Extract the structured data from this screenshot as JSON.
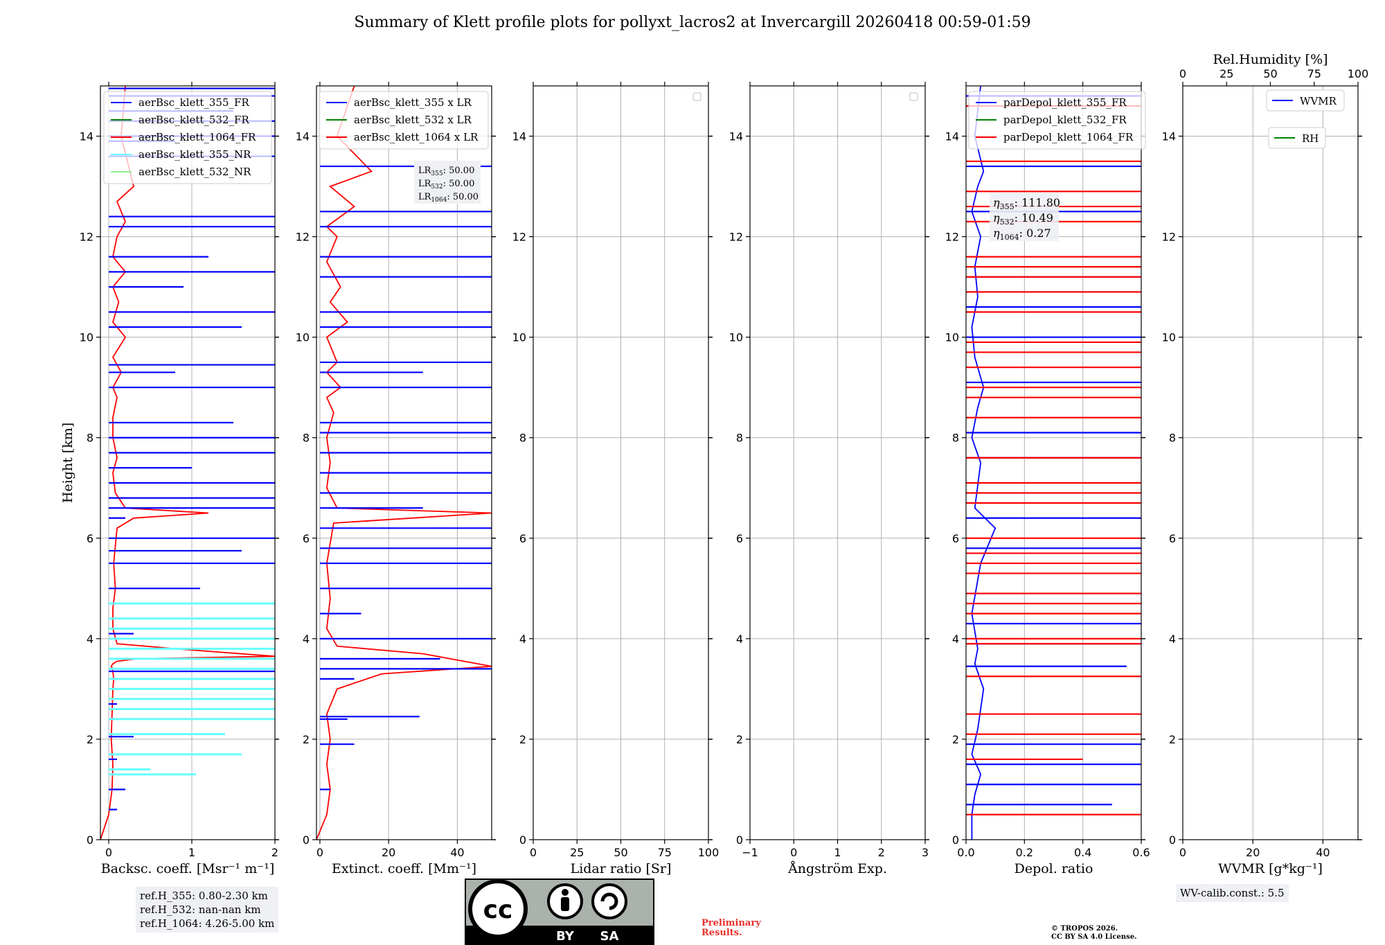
{
  "figure": {
    "title": "Summary of Klett profile plots for pollyxt_lacros2 at Invercargill 20260418 00:59-01:59",
    "ylabel": "Height [km]",
    "ref_heights": [
      "ref.H_355: 0.80-2.30 km",
      "ref.H_532: nan-nan km",
      "ref.H_1064: 4.26-5.00 km"
    ],
    "wv_calib": "WV-calib.const.: 5.5",
    "preliminary": [
      "Preliminary",
      "Results."
    ],
    "copyright": [
      "© TROPOS 2026.",
      "CC BY SA 4.0 License."
    ],
    "license_badge": {
      "by": "BY",
      "sa": "SA"
    }
  },
  "colors": {
    "blue": "#0000ff",
    "red": "#ff0000",
    "cyan": "#66ffff",
    "green": "#008000",
    "lightgreen": "#90ee90",
    "grid": "#b0b0b0"
  },
  "chart_data": [
    {
      "type": "line",
      "name": "backscatter",
      "xlabel": "Backsc. coeff. [Msr⁻¹ m⁻¹]",
      "xlim": [
        -0.1,
        2
      ],
      "xticks": [
        0,
        1,
        2
      ],
      "ylim": [
        0,
        15
      ],
      "yticks": [
        0,
        2,
        4,
        6,
        8,
        10,
        12,
        14
      ],
      "legend": [
        "aerBsc_klett_355_FR",
        "aerBsc_klett_532_FR",
        "aerBsc_klett_1064_FR",
        "aerBsc_klett_355_NR",
        "aerBsc_klett_532_NR"
      ],
      "legend_colors": [
        "#0000ff",
        "#008000",
        "#ff0000",
        "#66ffff",
        "#90ee90"
      ],
      "series": [
        {
          "name": "aerBsc_klett_1064_FR",
          "color": "#ff0000",
          "x": [
            -0.1,
            0.0,
            0.04,
            0.05,
            0.03,
            0.04,
            0.05,
            0.06,
            0.05,
            0.04,
            0.03,
            0.05,
            0.1,
            0.35,
            1.0,
            2.0,
            0.8,
            0.1,
            0.05,
            0.05,
            0.08,
            0.06,
            0.1,
            0.3,
            1.2,
            0.2,
            0.08,
            0.05,
            0.1,
            0.05,
            0.05,
            0.1,
            0.05,
            0.15,
            0.05,
            0.2,
            0.05,
            0.12,
            0.05,
            0.2,
            0.05,
            0.1,
            0.2,
            0.1,
            0.3,
            0.15,
            0.2
          ],
          "y": [
            0.0,
            0.5,
            1.0,
            1.5,
            2.0,
            2.5,
            3.0,
            3.2,
            3.35,
            3.42,
            3.45,
            3.5,
            3.55,
            3.6,
            3.62,
            3.65,
            3.8,
            3.9,
            4.2,
            4.6,
            5.0,
            5.5,
            6.2,
            6.4,
            6.5,
            6.6,
            6.9,
            7.3,
            7.6,
            8.0,
            8.4,
            8.8,
            9.0,
            9.3,
            9.6,
            10.0,
            10.3,
            10.7,
            11.0,
            11.3,
            11.6,
            12.0,
            12.3,
            12.7,
            13.0,
            14.0,
            15.0
          ]
        },
        {
          "name": "aerBsc_klett_355_FR",
          "color": "#0000ff",
          "style": "spikes",
          "x": [
            0.1,
            0.2,
            0.1,
            0.3,
            0.05,
            0.1,
            2.0,
            0.5,
            0.3,
            2.0,
            1.1,
            2.0,
            1.6,
            2.0,
            0.2,
            2.0,
            2.0,
            2.0,
            1.0,
            2.0,
            2.0,
            1.5,
            2.0,
            0.8,
            2.0,
            1.6,
            2.0,
            0.9,
            2.0,
            1.2,
            2.0,
            2.0,
            2.0,
            0.8,
            2.0,
            2.0,
            1.5,
            2.0,
            2.0
          ],
          "y": [
            0.6,
            1.0,
            1.6,
            2.05,
            2.4,
            2.7,
            3.35,
            3.6,
            4.1,
            4.2,
            5.0,
            5.5,
            5.75,
            6.0,
            6.4,
            6.6,
            6.8,
            7.1,
            7.4,
            7.7,
            8.0,
            8.3,
            9.0,
            9.3,
            9.45,
            10.2,
            10.5,
            11.0,
            11.3,
            11.6,
            12.2,
            12.4,
            13.6,
            13.9,
            14.0,
            14.3,
            14.5,
            14.8,
            14.95
          ]
        },
        {
          "name": "aerBsc_klett_355_NR",
          "color": "#66ffff",
          "style": "spikes",
          "x": [
            1.05,
            0.5,
            1.6,
            1.4,
            2.0,
            2.0,
            2.0,
            2.0,
            2.0,
            2.0,
            2.0,
            2.0,
            2.0,
            2.0,
            2.0,
            2.0
          ],
          "y": [
            1.3,
            1.4,
            1.7,
            2.1,
            2.4,
            2.6,
            2.8,
            3.0,
            3.2,
            3.4,
            3.6,
            3.8,
            4.0,
            4.2,
            4.4,
            4.7
          ]
        }
      ]
    },
    {
      "type": "line",
      "name": "extinction",
      "xlabel": "Extinct. coeff. [Mm⁻¹]",
      "xlim": [
        -1,
        50
      ],
      "xticks": [
        0,
        20,
        40
      ],
      "ylim": [
        0,
        15
      ],
      "yticks": [
        0,
        2,
        4,
        6,
        8,
        10,
        12,
        14
      ],
      "legend": [
        "aerBsc_klett_355 x LR",
        "aerBsc_klett_532 x LR",
        "aerBsc_klett_1064 x LR"
      ],
      "legend_colors": [
        "#0000ff",
        "#008000",
        "#ff0000"
      ],
      "lidar_ratio_labels": [
        {
          "prefix": "LR",
          "sub": "355",
          "value": ": 50.00"
        },
        {
          "prefix": "LR",
          "sub": "532",
          "value": ": 50.00"
        },
        {
          "prefix": "LR",
          "sub": "1064",
          "value": ": 50.00"
        }
      ],
      "series": [
        {
          "name": "aerBsc_klett_1064 x LR",
          "color": "#ff0000",
          "x": [
            -1,
            2,
            3,
            2,
            3,
            2,
            5,
            18,
            50,
            30,
            5,
            2,
            3,
            2,
            4,
            50,
            5,
            2,
            3,
            2,
            4,
            2,
            6,
            2,
            5,
            2,
            8,
            3,
            6,
            2,
            5,
            2,
            10,
            3,
            15,
            5,
            10
          ],
          "y": [
            0.0,
            0.5,
            1.0,
            1.5,
            2.0,
            2.5,
            3.0,
            3.3,
            3.45,
            3.7,
            3.85,
            4.2,
            4.8,
            5.5,
            6.3,
            6.5,
            6.6,
            7.0,
            7.5,
            8.0,
            8.5,
            8.8,
            9.0,
            9.3,
            9.5,
            10.0,
            10.3,
            10.7,
            11.0,
            11.5,
            12.0,
            12.2,
            12.6,
            13.0,
            13.3,
            14.0,
            15.0
          ]
        },
        {
          "name": "aerBsc_klett_355 x LR",
          "color": "#0000ff",
          "style": "spikes",
          "x": [
            3,
            10,
            8,
            29,
            10,
            50,
            35,
            50,
            12,
            50,
            50,
            50,
            50,
            30,
            50,
            50,
            50,
            50,
            50,
            50,
            30,
            50,
            50,
            50,
            50,
            50,
            50,
            50,
            50
          ],
          "y": [
            1.0,
            1.9,
            2.4,
            2.45,
            3.2,
            3.4,
            3.6,
            4.0,
            4.5,
            5.0,
            5.5,
            5.8,
            6.2,
            6.6,
            6.9,
            7.3,
            7.7,
            8.1,
            8.3,
            9.0,
            9.3,
            9.5,
            10.2,
            10.5,
            11.2,
            11.6,
            12.2,
            12.5,
            13.4
          ]
        }
      ]
    },
    {
      "type": "line",
      "name": "lidar_ratio",
      "xlabel": "Lidar ratio [Sr]",
      "xlim": [
        0,
        100
      ],
      "xticks": [
        0,
        25,
        50,
        75,
        100
      ],
      "ylim": [
        0,
        15
      ],
      "yticks": [
        0,
        2,
        4,
        6,
        8,
        10,
        12,
        14
      ],
      "series": []
    },
    {
      "type": "line",
      "name": "angstrom",
      "xlabel": "Ångström Exp.",
      "xlim": [
        -1,
        3
      ],
      "xticks": [
        -1,
        0,
        1,
        2,
        3
      ],
      "ylim": [
        0,
        15
      ],
      "yticks": [
        0,
        2,
        4,
        6,
        8,
        10,
        12,
        14
      ],
      "series": []
    },
    {
      "type": "line",
      "name": "depol",
      "xlabel": "Depol. ratio",
      "xlim": [
        0,
        0.6
      ],
      "xticks": [
        0.0,
        0.2,
        0.4,
        0.6
      ],
      "ylim": [
        0,
        15
      ],
      "yticks": [
        0,
        2,
        4,
        6,
        8,
        10,
        12,
        14
      ],
      "legend": [
        "parDepol_klett_355_FR",
        "parDepol_klett_532_FR",
        "parDepol_klett_1064_FR"
      ],
      "legend_colors": [
        "#0000ff",
        "#008000",
        "#ff0000"
      ],
      "eta_labels": [
        {
          "sub": "355",
          "value": ": 111.80"
        },
        {
          "sub": "532",
          "value": ": 10.49"
        },
        {
          "sub": "1064",
          "value": ": 0.27"
        }
      ],
      "series": [
        {
          "name": "parDepol_klett_355_FR",
          "color": "#0000ff",
          "x": [
            0.02,
            0.02,
            0.03,
            0.05,
            0.02,
            0.04,
            0.06,
            0.03,
            0.04,
            0.02,
            0.05,
            0.1,
            0.03,
            0.05,
            0.02,
            0.04,
            0.06,
            0.03,
            0.02,
            0.04,
            0.03,
            0.05,
            0.02,
            0.04,
            0.06,
            0.03,
            0.05
          ],
          "y": [
            0.0,
            0.5,
            0.9,
            1.3,
            1.7,
            2.2,
            3.0,
            3.5,
            3.8,
            4.5,
            5.5,
            6.2,
            6.6,
            7.5,
            8.0,
            8.6,
            9.0,
            9.6,
            10.2,
            10.8,
            11.4,
            12.0,
            12.5,
            13.0,
            13.3,
            14.0,
            15.0
          ]
        },
        {
          "name": "parDepol_klett_355_FR_spikes",
          "color": "#0000ff",
          "style": "spikes",
          "x": [
            0.5,
            0.6,
            0.6,
            0.6,
            0.55,
            0.6,
            0.6,
            0.6,
            0.6,
            0.6,
            0.6,
            0.6,
            0.6,
            0.6,
            0.6,
            0.6,
            0.6,
            0.6,
            0.6
          ],
          "y": [
            0.7,
            1.1,
            1.5,
            1.9,
            3.45,
            3.9,
            4.3,
            4.9,
            5.8,
            6.4,
            7.6,
            8.1,
            9.1,
            10.0,
            10.6,
            11.2,
            12.5,
            13.4,
            14.8
          ]
        },
        {
          "name": "parDepol_klett_1064_FR",
          "color": "#ff0000",
          "style": "spikes",
          "x": [
            0.6,
            0.4,
            0.6,
            0.6,
            0.6,
            0.6,
            0.6,
            0.6,
            0.6,
            0.6,
            0.6,
            0.6,
            0.6,
            0.6,
            0.6,
            0.6,
            0.6,
            0.6,
            0.6,
            0.6,
            0.6,
            0.6,
            0.6,
            0.6,
            0.6,
            0.6,
            0.6,
            0.6,
            0.6,
            0.6,
            0.6,
            0.6,
            0.6,
            0.6
          ],
          "y": [
            0.5,
            1.6,
            2.1,
            2.5,
            3.25,
            3.9,
            4.0,
            4.5,
            4.7,
            4.9,
            5.3,
            5.5,
            5.7,
            6.0,
            6.7,
            6.9,
            7.1,
            7.6,
            8.4,
            8.8,
            9.0,
            9.4,
            9.7,
            9.9,
            10.5,
            10.9,
            11.2,
            11.4,
            11.6,
            12.3,
            12.6,
            12.9,
            13.5,
            14.6
          ]
        }
      ]
    },
    {
      "type": "line",
      "name": "wvmr",
      "xlabel": "WVMR [g*kg⁻¹]",
      "xlabel_math": "WVMR [$g * kg^{-1}$]",
      "xlim": [
        0,
        50
      ],
      "xticks": [
        0,
        20,
        40
      ],
      "top_xlabel": "Rel.Humidity [%]",
      "top_xlim": [
        0,
        100
      ],
      "top_xticks": [
        0,
        25,
        50,
        75,
        100
      ],
      "ylim": [
        0,
        15
      ],
      "yticks": [
        0,
        2,
        4,
        6,
        8,
        10,
        12,
        14
      ],
      "legend": [
        "WVMR",
        "RH"
      ],
      "legend_colors": [
        "#0000ff",
        "#008000"
      ],
      "series": []
    }
  ]
}
